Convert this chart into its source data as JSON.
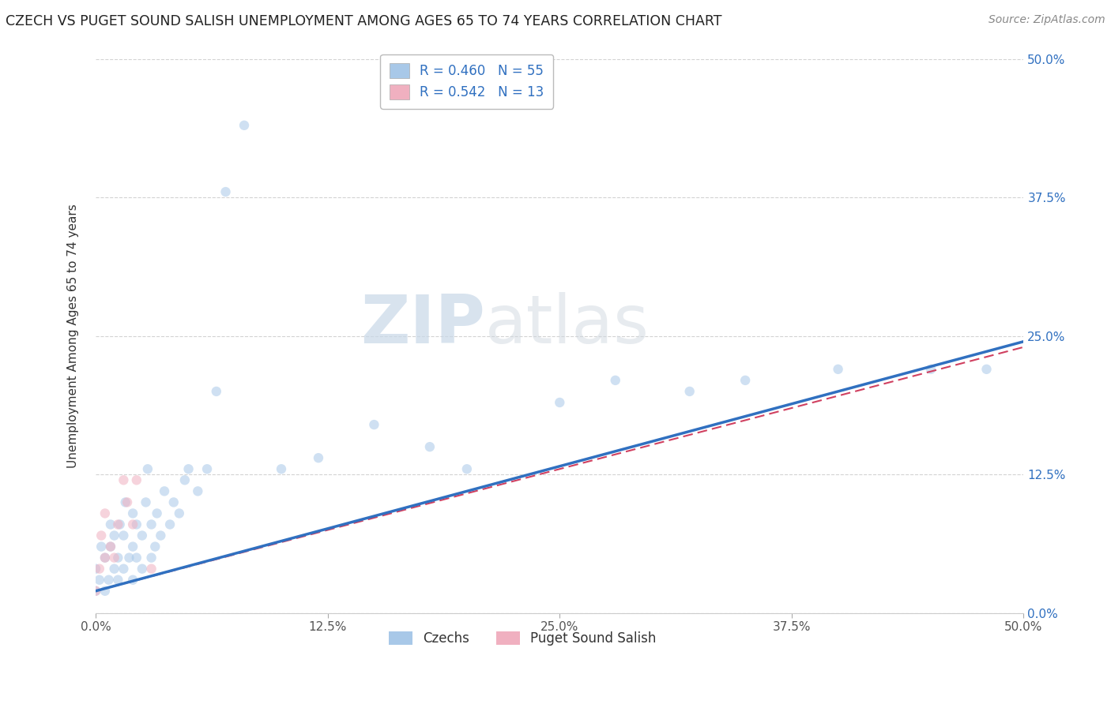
{
  "title": "CZECH VS PUGET SOUND SALISH UNEMPLOYMENT AMONG AGES 65 TO 74 YEARS CORRELATION CHART",
  "source": "Source: ZipAtlas.com",
  "ylabel": "Unemployment Among Ages 65 to 74 years",
  "xlim": [
    0.0,
    0.5
  ],
  "ylim": [
    0.0,
    0.5
  ],
  "background_color": "#ffffff",
  "grid_color": "#c8c8c8",
  "czech_color": "#a8c8e8",
  "czech_line_color": "#3070c0",
  "salish_color": "#f0b0c0",
  "salish_line_color": "#d04060",
  "tick_color": "#4472c4",
  "R_czech": 0.46,
  "N_czech": 55,
  "R_salish": 0.542,
  "N_salish": 13,
  "czech_x": [
    0.0,
    0.0,
    0.002,
    0.003,
    0.005,
    0.005,
    0.007,
    0.008,
    0.008,
    0.01,
    0.01,
    0.012,
    0.012,
    0.013,
    0.015,
    0.015,
    0.016,
    0.018,
    0.02,
    0.02,
    0.02,
    0.022,
    0.022,
    0.025,
    0.025,
    0.027,
    0.028,
    0.03,
    0.03,
    0.032,
    0.033,
    0.035,
    0.037,
    0.04,
    0.042,
    0.045,
    0.048,
    0.05,
    0.055,
    0.06,
    0.065,
    0.07,
    0.08,
    0.1,
    0.12,
    0.15,
    0.18,
    0.2,
    0.25,
    0.28,
    0.32,
    0.35,
    0.4,
    0.45,
    0.48
  ],
  "czech_y": [
    0.02,
    0.04,
    0.03,
    0.06,
    0.02,
    0.05,
    0.03,
    0.06,
    0.08,
    0.04,
    0.07,
    0.03,
    0.05,
    0.08,
    0.04,
    0.07,
    0.1,
    0.05,
    0.03,
    0.06,
    0.09,
    0.05,
    0.08,
    0.04,
    0.07,
    0.1,
    0.13,
    0.05,
    0.08,
    0.06,
    0.09,
    0.07,
    0.11,
    0.08,
    0.1,
    0.09,
    0.12,
    0.13,
    0.11,
    0.13,
    0.2,
    0.38,
    0.44,
    0.13,
    0.14,
    0.17,
    0.15,
    0.13,
    0.19,
    0.21,
    0.2,
    0.21,
    0.22,
    0.22,
    0.22
  ],
  "salish_x": [
    0.0,
    0.002,
    0.003,
    0.005,
    0.005,
    0.008,
    0.01,
    0.012,
    0.015,
    0.017,
    0.02,
    0.022,
    0.03
  ],
  "salish_y": [
    0.02,
    0.04,
    0.07,
    0.05,
    0.09,
    0.06,
    0.05,
    0.08,
    0.12,
    0.1,
    0.08,
    0.12,
    0.04
  ],
  "czech_line_x": [
    0.0,
    0.5
  ],
  "czech_line_y": [
    0.02,
    0.245
  ],
  "salish_line_x": [
    0.0,
    0.5
  ],
  "salish_line_y": [
    0.02,
    0.245
  ],
  "marker_size": 80,
  "alpha_scatter": 0.55,
  "legend_label_czech": "Czechs",
  "legend_label_salish": "Puget Sound Salish",
  "watermark_zip": "ZIP",
  "watermark_atlas": "atlas"
}
